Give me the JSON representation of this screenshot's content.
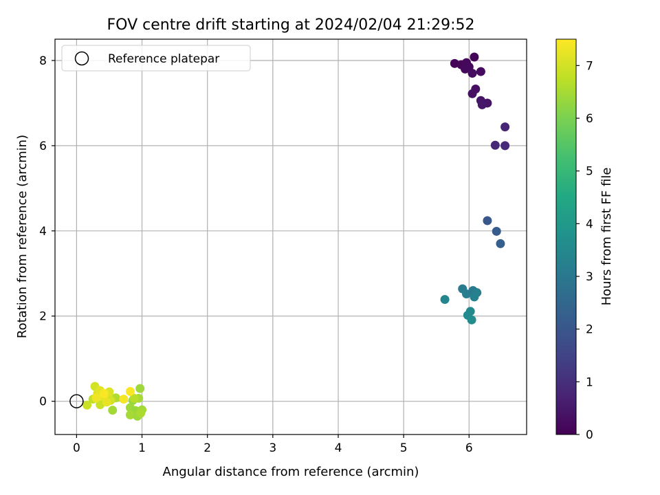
{
  "chart_data": {
    "type": "scatter",
    "title": "FOV centre drift starting at 2024/02/04 21:29:52",
    "xlabel": "Angular distance from reference (arcmin)",
    "ylabel": "Rotation from reference (arcmin)",
    "xlim": [
      -0.33,
      6.88
    ],
    "ylim": [
      -0.78,
      8.5
    ],
    "x_ticks": [
      0,
      1,
      2,
      3,
      4,
      5,
      6
    ],
    "y_ticks": [
      0,
      2,
      4,
      6,
      8
    ],
    "grid": true,
    "legend": {
      "placement": "top-left",
      "entries": [
        "Reference platepar"
      ]
    },
    "reference_point": {
      "name": "Reference platepar",
      "x": 0,
      "y": 0,
      "marker": "open-circle"
    },
    "colorbar": {
      "label": "Hours from first FF file",
      "range": [
        0,
        7.5
      ],
      "ticks": [
        0,
        1,
        2,
        3,
        4,
        5,
        6,
        7
      ],
      "colormap": "viridis"
    },
    "points": [
      {
        "x": 5.78,
        "y": 7.93,
        "c": 0.05
      },
      {
        "x": 5.88,
        "y": 7.9,
        "c": 0.1
      },
      {
        "x": 5.96,
        "y": 7.95,
        "c": 0.15
      },
      {
        "x": 6.08,
        "y": 8.08,
        "c": 0.08
      },
      {
        "x": 6.0,
        "y": 7.85,
        "c": 0.2
      },
      {
        "x": 5.94,
        "y": 7.8,
        "c": 0.18
      },
      {
        "x": 6.05,
        "y": 7.7,
        "c": 0.25
      },
      {
        "x": 6.18,
        "y": 7.74,
        "c": 0.22
      },
      {
        "x": 6.1,
        "y": 7.33,
        "c": 0.3
      },
      {
        "x": 6.05,
        "y": 7.22,
        "c": 0.35
      },
      {
        "x": 6.18,
        "y": 7.06,
        "c": 0.4
      },
      {
        "x": 6.28,
        "y": 7.0,
        "c": 0.42
      },
      {
        "x": 6.2,
        "y": 6.96,
        "c": 0.45
      },
      {
        "x": 6.55,
        "y": 6.44,
        "c": 0.8
      },
      {
        "x": 6.4,
        "y": 6.01,
        "c": 0.85
      },
      {
        "x": 6.55,
        "y": 6.0,
        "c": 0.9
      },
      {
        "x": 6.28,
        "y": 4.24,
        "c": 2.05
      },
      {
        "x": 6.42,
        "y": 3.99,
        "c": 2.15
      },
      {
        "x": 6.48,
        "y": 3.7,
        "c": 2.25
      },
      {
        "x": 5.9,
        "y": 2.64,
        "c": 3.1
      },
      {
        "x": 5.96,
        "y": 2.52,
        "c": 3.15
      },
      {
        "x": 6.06,
        "y": 2.6,
        "c": 3.05
      },
      {
        "x": 6.12,
        "y": 2.55,
        "c": 3.2
      },
      {
        "x": 6.08,
        "y": 2.45,
        "c": 3.25
      },
      {
        "x": 5.63,
        "y": 2.39,
        "c": 3.4
      },
      {
        "x": 6.02,
        "y": 2.11,
        "c": 3.5
      },
      {
        "x": 5.98,
        "y": 2.02,
        "c": 3.55
      },
      {
        "x": 6.04,
        "y": 1.91,
        "c": 3.6
      },
      {
        "x": 0.97,
        "y": 0.3,
        "c": 6.4
      },
      {
        "x": 0.86,
        "y": 0.02,
        "c": 6.3
      },
      {
        "x": 0.95,
        "y": 0.07,
        "c": 6.5
      },
      {
        "x": 0.82,
        "y": -0.15,
        "c": 6.4
      },
      {
        "x": 0.9,
        "y": -0.22,
        "c": 6.35
      },
      {
        "x": 1.0,
        "y": -0.2,
        "c": 6.45
      },
      {
        "x": 0.82,
        "y": -0.32,
        "c": 6.5
      },
      {
        "x": 0.93,
        "y": -0.35,
        "c": 6.4
      },
      {
        "x": 0.98,
        "y": -0.28,
        "c": 6.55
      },
      {
        "x": 0.55,
        "y": -0.21,
        "c": 6.45
      },
      {
        "x": 0.6,
        "y": 0.08,
        "c": 6.6
      },
      {
        "x": 0.88,
        "y": 0.07,
        "c": 6.7
      },
      {
        "x": 0.72,
        "y": 0.05,
        "c": 7.4
      },
      {
        "x": 0.82,
        "y": 0.23,
        "c": 7.45
      },
      {
        "x": 0.16,
        "y": -0.09,
        "c": 6.9
      },
      {
        "x": 0.28,
        "y": 0.35,
        "c": 7.0
      },
      {
        "x": 0.25,
        "y": 0.05,
        "c": 6.8
      },
      {
        "x": 0.32,
        "y": 0.18,
        "c": 7.1
      },
      {
        "x": 0.36,
        "y": 0.25,
        "c": 7.2
      },
      {
        "x": 0.4,
        "y": 0.12,
        "c": 7.3
      },
      {
        "x": 0.44,
        "y": 0.05,
        "c": 7.2
      },
      {
        "x": 0.48,
        "y": 0.15,
        "c": 7.4
      },
      {
        "x": 0.5,
        "y": 0.22,
        "c": 7.1
      },
      {
        "x": 0.52,
        "y": 0.02,
        "c": 7.0
      },
      {
        "x": 0.36,
        "y": -0.08,
        "c": 6.9
      },
      {
        "x": 0.46,
        "y": -0.02,
        "c": 7.25
      },
      {
        "x": 0.3,
        "y": 0.08,
        "c": 7.35
      },
      {
        "x": 0.42,
        "y": 0.18,
        "c": 7.45
      }
    ]
  }
}
